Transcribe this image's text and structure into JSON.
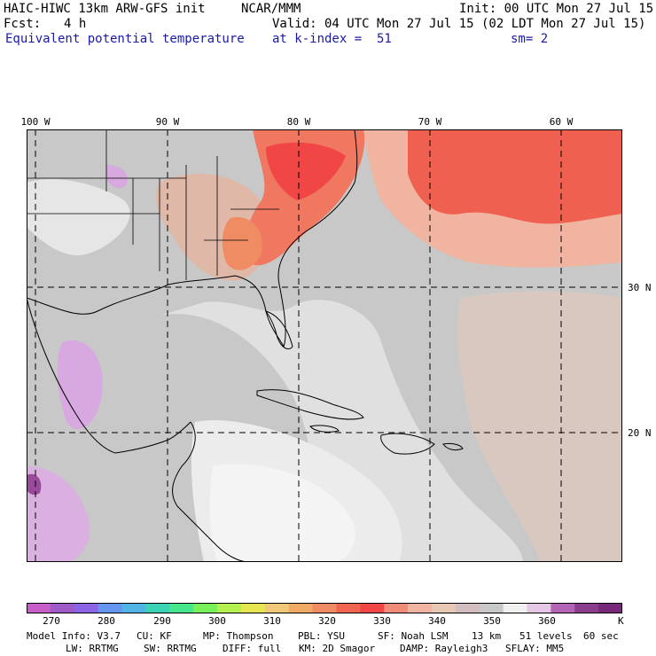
{
  "header": {
    "model_title": "HAIC-HIWC 13km ARW-GFS init",
    "org": "NCAR/MMM",
    "fcst_label": "Fcst:",
    "fcst_value": "4 h",
    "init": "Init: 00 UTC Mon 27 Jul 15",
    "valid": "Valid: 04 UTC Mon 27 Jul 15 (02 LDT Mon 27 Jul 15)",
    "field": "Equivalent potential temperature",
    "level": "at k-index =  51",
    "smoothing": "sm= 2"
  },
  "map": {
    "lon_labels": [
      "100 W",
      "90 W",
      "80 W",
      "70 W",
      "60 W"
    ],
    "lat_labels": [
      "30 N",
      "20 N"
    ],
    "region": "Gulf of Mexico, Caribbean, southeastern United States, western Atlantic",
    "lon_range": [
      -100,
      -56
    ],
    "lat_range": [
      12,
      41
    ]
  },
  "colorbar": {
    "colors": [
      "#c85fc8",
      "#a05ac8",
      "#8c64e6",
      "#6496f0",
      "#50b4e6",
      "#3cd2b4",
      "#46e68c",
      "#78f05a",
      "#b4f050",
      "#e6e650",
      "#f0c878",
      "#f0aa64",
      "#f08c64",
      "#f06450",
      "#f04646",
      "#f08c78",
      "#f0b4a0",
      "#e6c8b4",
      "#d2bebe",
      "#c8c8c8",
      "#f0f0f0",
      "#e6c8e6",
      "#b464b4",
      "#8c3c8c",
      "#782878"
    ],
    "ticks": [
      "270",
      "280",
      "290",
      "300",
      "310",
      "320",
      "330",
      "340",
      "350",
      "360"
    ],
    "unit": "K"
  },
  "model_info": {
    "line1": [
      "Model Info: V3.7",
      "CU: KF",
      "MP: Thompson",
      "PBL: YSU",
      "SF: Noah LSM",
      "13 km",
      "51 levels",
      "60 sec"
    ],
    "line2": [
      "LW: RRTMG",
      "SW: RRTMG",
      "DIFF: full",
      "KM: 2D Smagor",
      "DAMP: Rayleigh3",
      "SFLAY: MM5"
    ]
  }
}
